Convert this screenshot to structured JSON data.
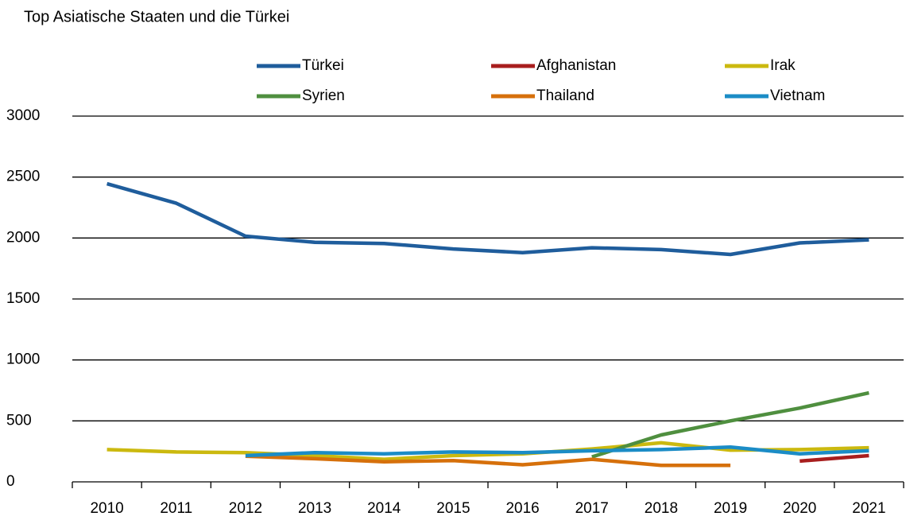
{
  "chart_data": {
    "type": "line",
    "title": "Top Asiatische Staaten und die Türkei",
    "categories": [
      "2010",
      "2011",
      "2012",
      "2013",
      "2014",
      "2015",
      "2016",
      "2017",
      "2018",
      "2019",
      "2020",
      "2021"
    ],
    "series": [
      {
        "name": "Türkei",
        "color": "#1f5d9c",
        "values": [
          2445,
          2285,
          2015,
          1965,
          1955,
          1910,
          1880,
          1920,
          1905,
          1865,
          1960,
          1985
        ]
      },
      {
        "name": "Afghanistan",
        "color": "#a81e1e",
        "values": [
          null,
          null,
          null,
          null,
          null,
          null,
          null,
          null,
          null,
          null,
          170,
          215
        ]
      },
      {
        "name": "Irak",
        "color": "#cbb90f",
        "values": [
          265,
          245,
          240,
          215,
          185,
          215,
          230,
          270,
          320,
          260,
          265,
          280
        ]
      },
      {
        "name": "Syrien",
        "color": "#4f8f3f",
        "values": [
          null,
          null,
          null,
          null,
          null,
          null,
          null,
          205,
          385,
          500,
          605,
          730
        ]
      },
      {
        "name": "Thailand",
        "color": "#d6700b",
        "values": [
          null,
          null,
          210,
          190,
          165,
          175,
          140,
          185,
          135,
          135,
          null,
          null
        ]
      },
      {
        "name": "Vietnam",
        "color": "#1b8cc6",
        "values": [
          null,
          null,
          215,
          240,
          230,
          245,
          240,
          255,
          265,
          285,
          230,
          255
        ]
      }
    ],
    "ylim": [
      0,
      3000
    ],
    "yticks": [
      0,
      500,
      1000,
      1500,
      2000,
      2500,
      3000
    ],
    "grid": true
  }
}
